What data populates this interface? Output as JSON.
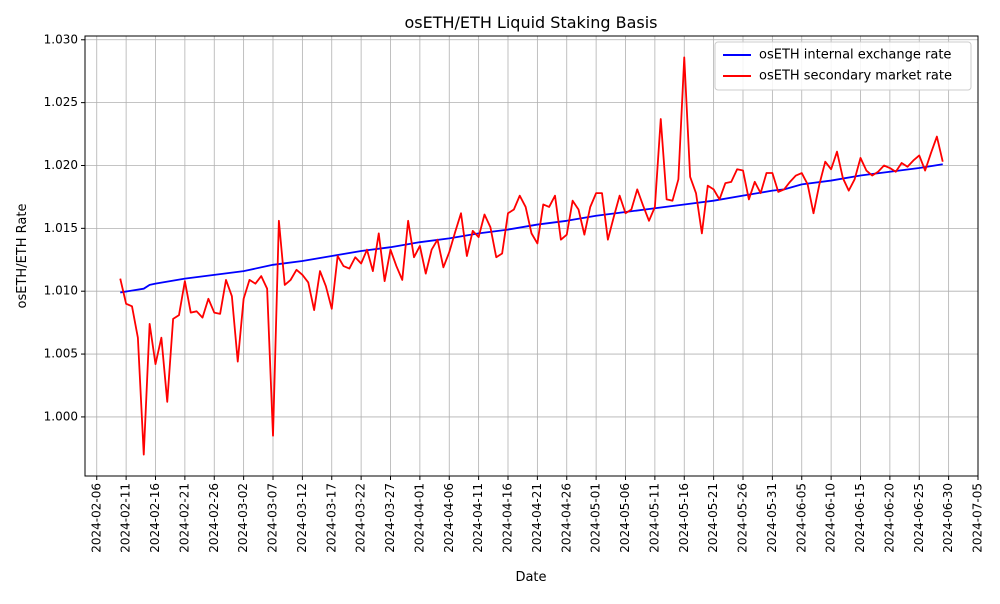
{
  "chart_data": {
    "type": "line",
    "title": "osETH/ETH Liquid Staking Basis",
    "xlabel": "Date",
    "ylabel": "osETH/ETH Rate",
    "xlim": [
      "2024-02-04",
      "2024-07-05"
    ],
    "ylim": [
      0.9953,
      1.0303
    ],
    "x_ticks": [
      "2024-02-06",
      "2024-02-11",
      "2024-02-16",
      "2024-02-21",
      "2024-02-26",
      "2024-03-02",
      "2024-03-07",
      "2024-03-12",
      "2024-03-17",
      "2024-03-22",
      "2024-03-27",
      "2024-04-01",
      "2024-04-06",
      "2024-04-11",
      "2024-04-16",
      "2024-04-21",
      "2024-04-26",
      "2024-05-01",
      "2024-05-06",
      "2024-05-11",
      "2024-05-16",
      "2024-05-21",
      "2024-05-26",
      "2024-05-31",
      "2024-06-05",
      "2024-06-10",
      "2024-06-15",
      "2024-06-20",
      "2024-06-25",
      "2024-06-30",
      "2024-07-05"
    ],
    "y_ticks": [
      "1.000",
      "1.005",
      "1.010",
      "1.015",
      "1.020",
      "1.025",
      "1.030"
    ],
    "grid": true,
    "legend_position": "upper right",
    "series": [
      {
        "name": "osETH internal exchange rate",
        "color": "#0000ff",
        "points": [
          [
            "2024-02-10",
            1.0099
          ],
          [
            "2024-02-14",
            1.0102
          ],
          [
            "2024-02-15",
            1.0105
          ],
          [
            "2024-02-16",
            1.0106
          ],
          [
            "2024-02-21",
            1.011
          ],
          [
            "2024-02-26",
            1.0113
          ],
          [
            "2024-03-02",
            1.0116
          ],
          [
            "2024-03-03",
            1.0117
          ],
          [
            "2024-03-07",
            1.0121
          ],
          [
            "2024-03-12",
            1.0124
          ],
          [
            "2024-03-17",
            1.0128
          ],
          [
            "2024-03-22",
            1.0132
          ],
          [
            "2024-03-27",
            1.0135
          ],
          [
            "2024-04-01",
            1.0139
          ],
          [
            "2024-04-06",
            1.0142
          ],
          [
            "2024-04-11",
            1.0146
          ],
          [
            "2024-04-16",
            1.0149
          ],
          [
            "2024-04-21",
            1.0153
          ],
          [
            "2024-04-26",
            1.0156
          ],
          [
            "2024-05-01",
            1.016
          ],
          [
            "2024-05-06",
            1.0163
          ],
          [
            "2024-05-11",
            1.0166
          ],
          [
            "2024-05-16",
            1.0169
          ],
          [
            "2024-05-21",
            1.0172
          ],
          [
            "2024-05-26",
            1.0176
          ],
          [
            "2024-05-31",
            1.018
          ],
          [
            "2024-06-02",
            1.0181
          ],
          [
            "2024-06-05",
            1.0185
          ],
          [
            "2024-06-10",
            1.0188
          ],
          [
            "2024-06-15",
            1.0192
          ],
          [
            "2024-06-20",
            1.0195
          ],
          [
            "2024-06-25",
            1.0198
          ],
          [
            "2024-06-29",
            1.0201
          ]
        ]
      },
      {
        "name": "osETH secondary market rate",
        "color": "#ff0000",
        "points": [
          [
            "2024-02-10",
            1.011
          ],
          [
            "2024-02-11",
            1.009
          ],
          [
            "2024-02-12",
            1.0088
          ],
          [
            "2024-02-13",
            1.0063
          ],
          [
            "2024-02-14",
            0.997
          ],
          [
            "2024-02-15",
            1.0074
          ],
          [
            "2024-02-16",
            1.0042
          ],
          [
            "2024-02-17",
            1.0063
          ],
          [
            "2024-02-18",
            1.0012
          ],
          [
            "2024-02-19",
            1.0078
          ],
          [
            "2024-02-20",
            1.0081
          ],
          [
            "2024-02-21",
            1.0108
          ],
          [
            "2024-02-22",
            1.0083
          ],
          [
            "2024-02-23",
            1.0084
          ],
          [
            "2024-02-24",
            1.0079
          ],
          [
            "2024-02-25",
            1.0094
          ],
          [
            "2024-02-26",
            1.0083
          ],
          [
            "2024-02-27",
            1.0082
          ],
          [
            "2024-02-28",
            1.0109
          ],
          [
            "2024-02-29",
            1.0096
          ],
          [
            "2024-03-01",
            1.0044
          ],
          [
            "2024-03-02",
            1.0094
          ],
          [
            "2024-03-03",
            1.0109
          ],
          [
            "2024-03-04",
            1.0106
          ],
          [
            "2024-03-05",
            1.0112
          ],
          [
            "2024-03-06",
            1.0102
          ],
          [
            "2024-03-07",
            0.9985
          ],
          [
            "2024-03-08",
            1.0156
          ],
          [
            "2024-03-09",
            1.0105
          ],
          [
            "2024-03-10",
            1.0109
          ],
          [
            "2024-03-11",
            1.0117
          ],
          [
            "2024-03-12",
            1.0113
          ],
          [
            "2024-03-13",
            1.0107
          ],
          [
            "2024-03-14",
            1.0085
          ],
          [
            "2024-03-15",
            1.0116
          ],
          [
            "2024-03-16",
            1.0104
          ],
          [
            "2024-03-17",
            1.0086
          ],
          [
            "2024-03-18",
            1.0128
          ],
          [
            "2024-03-19",
            1.012
          ],
          [
            "2024-03-20",
            1.0118
          ],
          [
            "2024-03-21",
            1.0127
          ],
          [
            "2024-03-22",
            1.0122
          ],
          [
            "2024-03-23",
            1.0133
          ],
          [
            "2024-03-24",
            1.0116
          ],
          [
            "2024-03-25",
            1.0146
          ],
          [
            "2024-03-26",
            1.0108
          ],
          [
            "2024-03-27",
            1.0133
          ],
          [
            "2024-03-28",
            1.012
          ],
          [
            "2024-03-29",
            1.0109
          ],
          [
            "2024-03-30",
            1.0156
          ],
          [
            "2024-03-31",
            1.0127
          ],
          [
            "2024-04-01",
            1.0136
          ],
          [
            "2024-04-02",
            1.0114
          ],
          [
            "2024-04-03",
            1.0133
          ],
          [
            "2024-04-04",
            1.0141
          ],
          [
            "2024-04-05",
            1.0119
          ],
          [
            "2024-04-06",
            1.0131
          ],
          [
            "2024-04-07",
            1.0147
          ],
          [
            "2024-04-08",
            1.0162
          ],
          [
            "2024-04-09",
            1.0128
          ],
          [
            "2024-04-10",
            1.0148
          ],
          [
            "2024-04-11",
            1.0143
          ],
          [
            "2024-04-12",
            1.0161
          ],
          [
            "2024-04-13",
            1.0151
          ],
          [
            "2024-04-14",
            1.0127
          ],
          [
            "2024-04-15",
            1.013
          ],
          [
            "2024-04-16",
            1.0162
          ],
          [
            "2024-04-17",
            1.0165
          ],
          [
            "2024-04-18",
            1.0176
          ],
          [
            "2024-04-19",
            1.0167
          ],
          [
            "2024-04-20",
            1.0146
          ],
          [
            "2024-04-21",
            1.0138
          ],
          [
            "2024-04-22",
            1.0169
          ],
          [
            "2024-04-23",
            1.0167
          ],
          [
            "2024-04-24",
            1.0176
          ],
          [
            "2024-04-25",
            1.0141
          ],
          [
            "2024-04-26",
            1.0145
          ],
          [
            "2024-04-27",
            1.0172
          ],
          [
            "2024-04-28",
            1.0165
          ],
          [
            "2024-04-29",
            1.0145
          ],
          [
            "2024-04-30",
            1.0167
          ],
          [
            "2024-05-01",
            1.0178
          ],
          [
            "2024-05-02",
            1.0178
          ],
          [
            "2024-05-03",
            1.0141
          ],
          [
            "2024-05-04",
            1.0159
          ],
          [
            "2024-05-05",
            1.0176
          ],
          [
            "2024-05-06",
            1.0162
          ],
          [
            "2024-05-07",
            1.0165
          ],
          [
            "2024-05-08",
            1.0181
          ],
          [
            "2024-05-09",
            1.0168
          ],
          [
            "2024-05-10",
            1.0156
          ],
          [
            "2024-05-11",
            1.0167
          ],
          [
            "2024-05-12",
            1.0237
          ],
          [
            "2024-05-13",
            1.0173
          ],
          [
            "2024-05-14",
            1.0172
          ],
          [
            "2024-05-15",
            1.0189
          ],
          [
            "2024-05-16",
            1.0286
          ],
          [
            "2024-05-17",
            1.0191
          ],
          [
            "2024-05-18",
            1.0178
          ],
          [
            "2024-05-19",
            1.0146
          ],
          [
            "2024-05-20",
            1.0184
          ],
          [
            "2024-05-21",
            1.0181
          ],
          [
            "2024-05-22",
            1.0173
          ],
          [
            "2024-05-23",
            1.0186
          ],
          [
            "2024-05-24",
            1.0187
          ],
          [
            "2024-05-25",
            1.0197
          ],
          [
            "2024-05-26",
            1.0196
          ],
          [
            "2024-05-27",
            1.0173
          ],
          [
            "2024-05-28",
            1.0187
          ],
          [
            "2024-05-29",
            1.0178
          ],
          [
            "2024-05-30",
            1.0194
          ],
          [
            "2024-05-31",
            1.0194
          ],
          [
            "2024-06-01",
            1.0179
          ],
          [
            "2024-06-02",
            1.0181
          ],
          [
            "2024-06-03",
            1.0187
          ],
          [
            "2024-06-04",
            1.0192
          ],
          [
            "2024-06-05",
            1.0194
          ],
          [
            "2024-06-06",
            1.0185
          ],
          [
            "2024-06-07",
            1.0162
          ],
          [
            "2024-06-08",
            1.0185
          ],
          [
            "2024-06-09",
            1.0203
          ],
          [
            "2024-06-10",
            1.0197
          ],
          [
            "2024-06-11",
            1.0211
          ],
          [
            "2024-06-12",
            1.019
          ],
          [
            "2024-06-13",
            1.018
          ],
          [
            "2024-06-14",
            1.0189
          ],
          [
            "2024-06-15",
            1.0206
          ],
          [
            "2024-06-16",
            1.0196
          ],
          [
            "2024-06-17",
            1.0192
          ],
          [
            "2024-06-18",
            1.0195
          ],
          [
            "2024-06-19",
            1.02
          ],
          [
            "2024-06-20",
            1.0198
          ],
          [
            "2024-06-21",
            1.0195
          ],
          [
            "2024-06-22",
            1.0202
          ],
          [
            "2024-06-23",
            1.0199
          ],
          [
            "2024-06-24",
            1.0204
          ],
          [
            "2024-06-25",
            1.0208
          ],
          [
            "2024-06-26",
            1.0196
          ],
          [
            "2024-06-27",
            1.021
          ],
          [
            "2024-06-28",
            1.0223
          ],
          [
            "2024-06-29",
            1.0203
          ]
        ]
      }
    ]
  }
}
